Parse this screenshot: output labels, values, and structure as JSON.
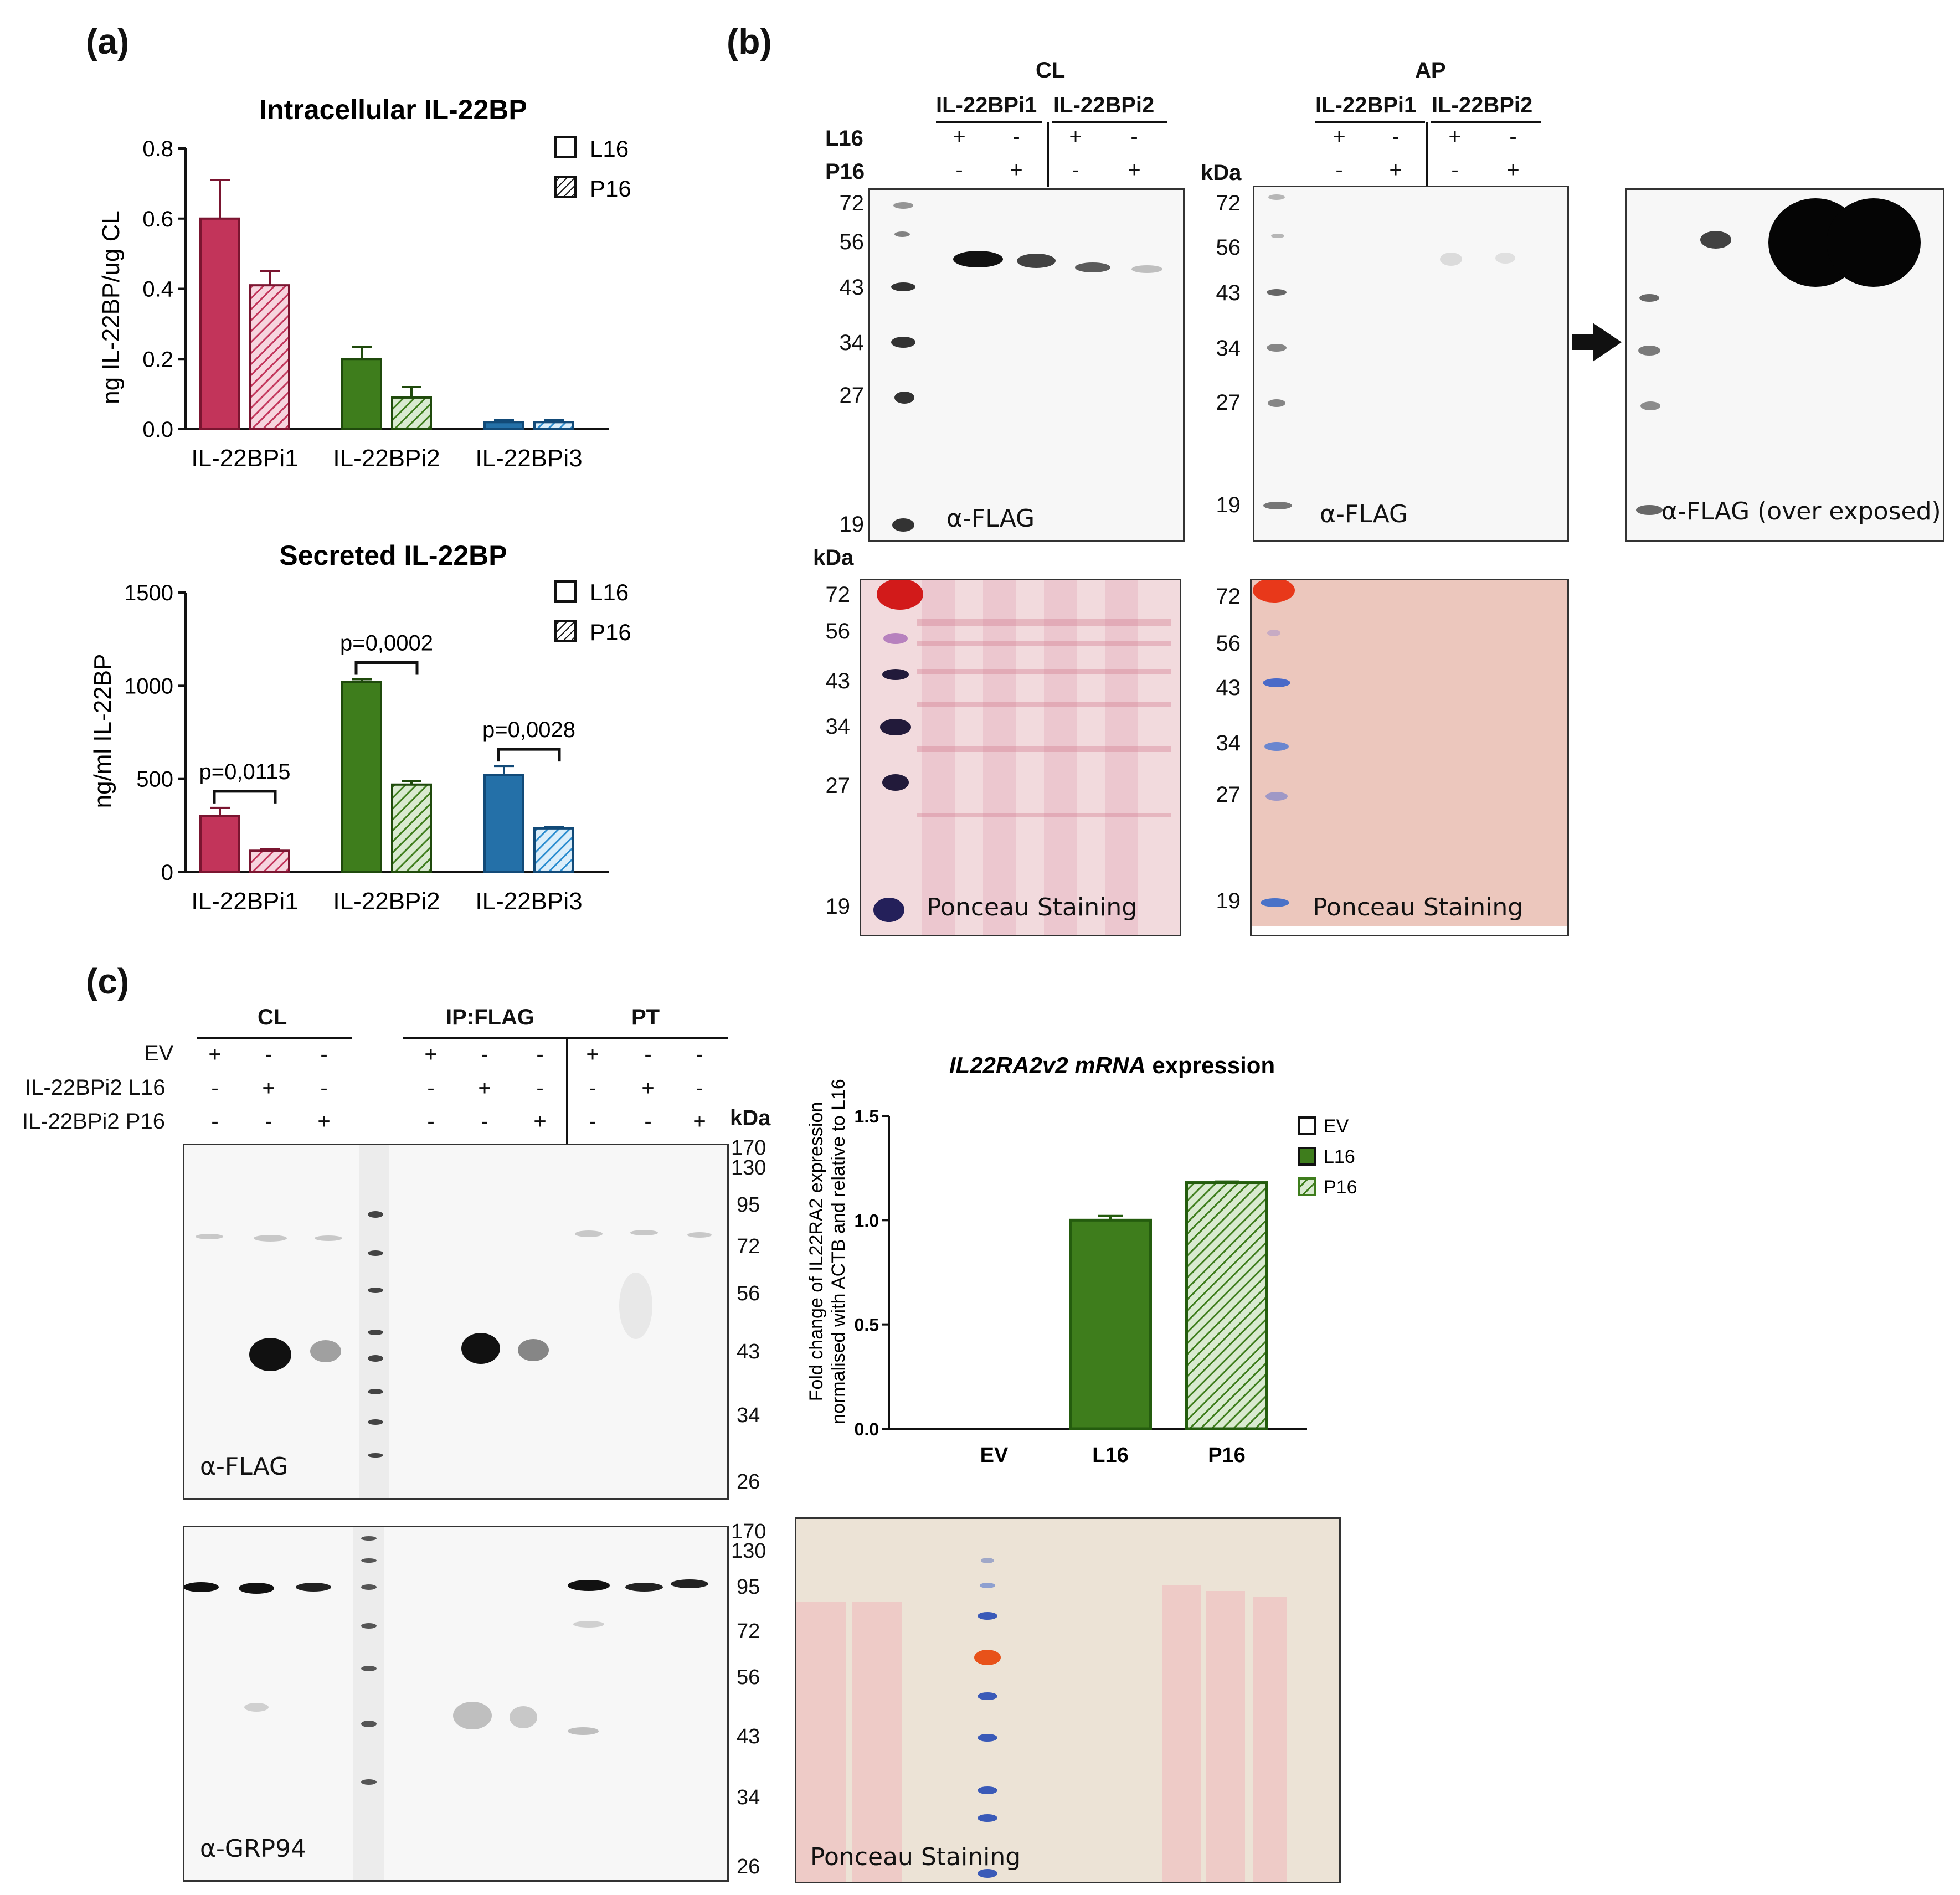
{
  "panels": {
    "a": "(a)",
    "b": "(b)",
    "c": "(c)"
  },
  "colors": {
    "pink": "#c2345a",
    "green": "#3e7d1c",
    "blue": "#2470a8",
    "lightblue": "#68b4e8"
  },
  "chart_data": [
    {
      "type": "bar",
      "title": "Intracellular IL-22BP",
      "ylabel": "ng IL-22BP/ug CL",
      "categories": [
        "IL-22BPi1",
        "IL-22BPi2",
        "IL-22BPi3"
      ],
      "yticks": [
        "0.0",
        "0.2",
        "0.4",
        "0.6",
        "0.8"
      ],
      "ylim": [
        0,
        0.8
      ],
      "series": [
        {
          "name": "L16",
          "values": [
            0.6,
            0.2,
            0.02
          ],
          "errors": [
            0.11,
            0.035,
            0.006
          ]
        },
        {
          "name": "P16",
          "values": [
            0.41,
            0.09,
            0.02
          ],
          "errors": [
            0.04,
            0.03,
            0.006
          ]
        }
      ],
      "legend": [
        "L16",
        "P16"
      ]
    },
    {
      "type": "bar",
      "title": "Secreted IL-22BP",
      "ylabel": "ng/ml IL-22BP",
      "categories": [
        "IL-22BPi1",
        "IL-22BPi2",
        "IL-22BPi3"
      ],
      "yticks": [
        "0",
        "500",
        "1000",
        "1500"
      ],
      "ylim": [
        0,
        1500
      ],
      "series": [
        {
          "name": "L16",
          "values": [
            300,
            1020,
            520
          ],
          "errors": [
            45,
            15,
            50
          ]
        },
        {
          "name": "P16",
          "values": [
            115,
            470,
            235
          ],
          "errors": [
            8,
            20,
            8
          ]
        }
      ],
      "pvalues": [
        "p=0,0115",
        "p=0,0002",
        "p=0,0028"
      ],
      "legend": [
        "L16",
        "P16"
      ]
    },
    {
      "type": "bar",
      "title_italic": "IL22RA2v2 mRNA",
      "title_rest": " expression",
      "ylabel_line1": "Fold change of IL22RA2 expression",
      "ylabel_line2": "normalised with ACTB and relative to L16",
      "categories": [
        "EV",
        "L16",
        "P16"
      ],
      "values": [
        0,
        1.0,
        1.18
      ],
      "errors": [
        0,
        0.02,
        0.005
      ],
      "yticks": [
        "0.0",
        "0.5",
        "1.0",
        "1.5"
      ],
      "ylim": [
        0,
        1.5
      ],
      "legend": [
        "EV",
        "L16",
        "P16"
      ]
    }
  ],
  "b": {
    "cl_header": "CL",
    "ap_header": "AP",
    "isoform1": "IL-22BPi1",
    "isoform2": "IL-22BPi2",
    "row_l16": "L16",
    "row_p16": "P16",
    "signs_l16": [
      "+",
      "-",
      "+",
      "-"
    ],
    "signs_p16": [
      "-",
      "+",
      "-",
      "+"
    ],
    "kda": "kDa",
    "mw": [
      "72",
      "56",
      "43",
      "34",
      "27",
      "19"
    ],
    "flag": "α-FLAG",
    "flag_over": "α-FLAG (over exposed)",
    "ponceau": "Ponceau Staining"
  },
  "c": {
    "hdr_cl": "CL",
    "hdr_ip": "IP:FLAG",
    "hdr_pt": "PT",
    "rows": [
      "EV",
      "IL-22BPi2 L16",
      "IL-22BPi2 P16"
    ],
    "signs": [
      [
        "+",
        "-",
        "-"
      ],
      [
        "-",
        "+",
        "-"
      ],
      [
        "-",
        "-",
        "+"
      ]
    ],
    "kda": "kDa",
    "mw": [
      "170",
      "130",
      "95",
      "72",
      "56",
      "43",
      "34",
      "26"
    ],
    "flag": "α-FLAG",
    "grp": "α-GRP94",
    "ponceau": "Ponceau Staining"
  }
}
